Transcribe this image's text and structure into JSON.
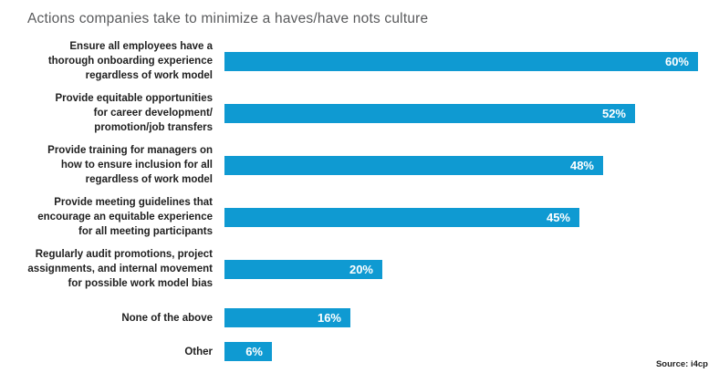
{
  "title": "Actions companies take to minimize a haves/have nots culture",
  "source_note": "Source: i4cp",
  "colors": {
    "bar": "#0f9ad2",
    "title_text": "#595a5c",
    "label_text": "#1f1f1f",
    "value_text": "#ffffff",
    "background": "#ffffff"
  },
  "chart_data": {
    "type": "bar",
    "orientation": "horizontal",
    "title": "Actions companies take to minimize a haves/have nots culture",
    "categories": [
      "Ensure all employees have a thorough onboarding experience regardless of work model",
      "Provide equitable opportunities for career development/promotion/job transfers",
      "Provide training for managers on how to ensure inclusion for all regardless of work model",
      "Provide meeting guidelines that encourage an equitable experience for all meeting participants",
      "Regularly audit promotions, project assignments, and internal movement for possible work model bias",
      "None of the above",
      "Other"
    ],
    "category_lines": [
      [
        "Ensure all employees have a",
        "thorough onboarding experience",
        "regardless of work model"
      ],
      [
        "Provide equitable opportunities",
        "for career development/",
        "promotion/job transfers"
      ],
      [
        "Provide training for managers on",
        "how to ensure inclusion for all",
        "regardless of work model"
      ],
      [
        "Provide meeting guidelines that",
        "encourage an equitable experience",
        "for all meeting participants"
      ],
      [
        "Regularly audit promotions, project",
        "assignments, and internal movement",
        "for possible work model bias"
      ],
      [
        "None of the above"
      ],
      [
        "Other"
      ]
    ],
    "values": [
      60,
      52,
      48,
      45,
      20,
      16,
      6
    ],
    "value_labels": [
      "60%",
      "52%",
      "48%",
      "45%",
      "20%",
      "16%",
      "6%"
    ],
    "unit": "%",
    "xlim": [
      0,
      62
    ],
    "grid": false,
    "legend": false,
    "value_label_position": "inside-end",
    "source": "Source: i4cp"
  }
}
